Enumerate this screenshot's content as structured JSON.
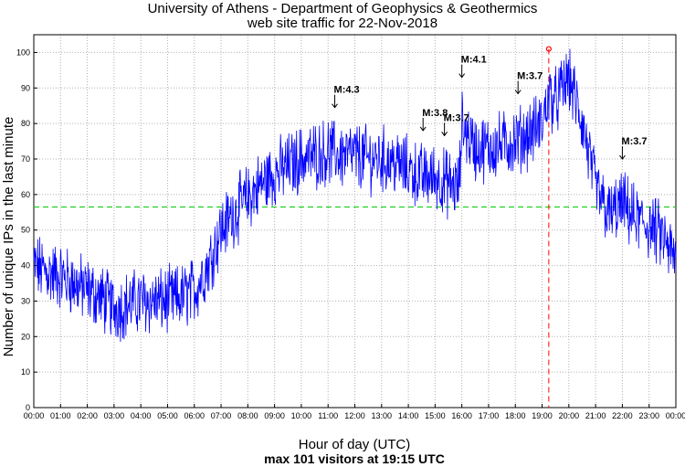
{
  "chart_data": {
    "type": "line",
    "title": "University of Athens - Department of Geophysics & Geothermics",
    "subtitle": "web site traffic for 22-Nov-2018",
    "ylabel": "Number of unique IPs in the last minute",
    "xlabel": "Hour of day (UTC)",
    "footer": "max 101 visitors at 19:15 UTC",
    "xlim": [
      0,
      24
    ],
    "ylim": [
      0,
      105
    ],
    "grid": true,
    "x_tick_labels": [
      "00:00",
      "01:00",
      "02:00",
      "03:00",
      "04:00",
      "05:00",
      "06:00",
      "07:00",
      "08:00",
      "09:00",
      "10:00",
      "11:00",
      "12:00",
      "13:00",
      "14:00",
      "15:00",
      "16:00",
      "17:00",
      "18:00",
      "19:00",
      "20:00",
      "21:00",
      "22:00",
      "23:00",
      "00:00"
    ],
    "y_tick_values": [
      0,
      10,
      20,
      30,
      40,
      50,
      60,
      70,
      80,
      90,
      100
    ],
    "average_line": 56.5,
    "max_marker": {
      "hour": 19.25,
      "value": 101
    },
    "series": [
      {
        "name": "unique IPs",
        "color": "#0000ff",
        "trend_hours": [
          0,
          0.5,
          1,
          1.5,
          2,
          2.5,
          3,
          3.5,
          4,
          4.5,
          5,
          5.5,
          6,
          6.5,
          7,
          7.5,
          8,
          8.5,
          9,
          9.5,
          10,
          10.5,
          11,
          11.5,
          12,
          12.5,
          13,
          13.5,
          14,
          14.5,
          15,
          15.5,
          15.9,
          16,
          16.5,
          17,
          17.5,
          18,
          18.5,
          19,
          19.25,
          19.5,
          20,
          20.5,
          21,
          21.5,
          22,
          22.5,
          23,
          23.5,
          24
        ],
        "trend_values": [
          40,
          38,
          37,
          35,
          33,
          31,
          28,
          29,
          30,
          30,
          30,
          31,
          33,
          40,
          50,
          55,
          59,
          63,
          66,
          68,
          70,
          71,
          72,
          71,
          71,
          70,
          70,
          69,
          67,
          65,
          65,
          63,
          62,
          80,
          73,
          73,
          74,
          75,
          77,
          80,
          88,
          86,
          93,
          80,
          62,
          54,
          57,
          53,
          51,
          48,
          41
        ]
      }
    ],
    "annotations": [
      {
        "label": "M:4.3",
        "hour": 11.25
      },
      {
        "label": "M:3.8",
        "hour": 14.55
      },
      {
        "label": "M:3.7",
        "hour": 15.35
      },
      {
        "label": "M:4.1",
        "hour": 16.0
      },
      {
        "label": "M:3.7",
        "hour": 18.1
      },
      {
        "label": "M:3.7",
        "hour": 22.0
      }
    ],
    "colors": {
      "line": "#0000ff",
      "average": "#00cc00",
      "max_marker": "#ff0000",
      "grid": "#b0b0b0"
    }
  }
}
